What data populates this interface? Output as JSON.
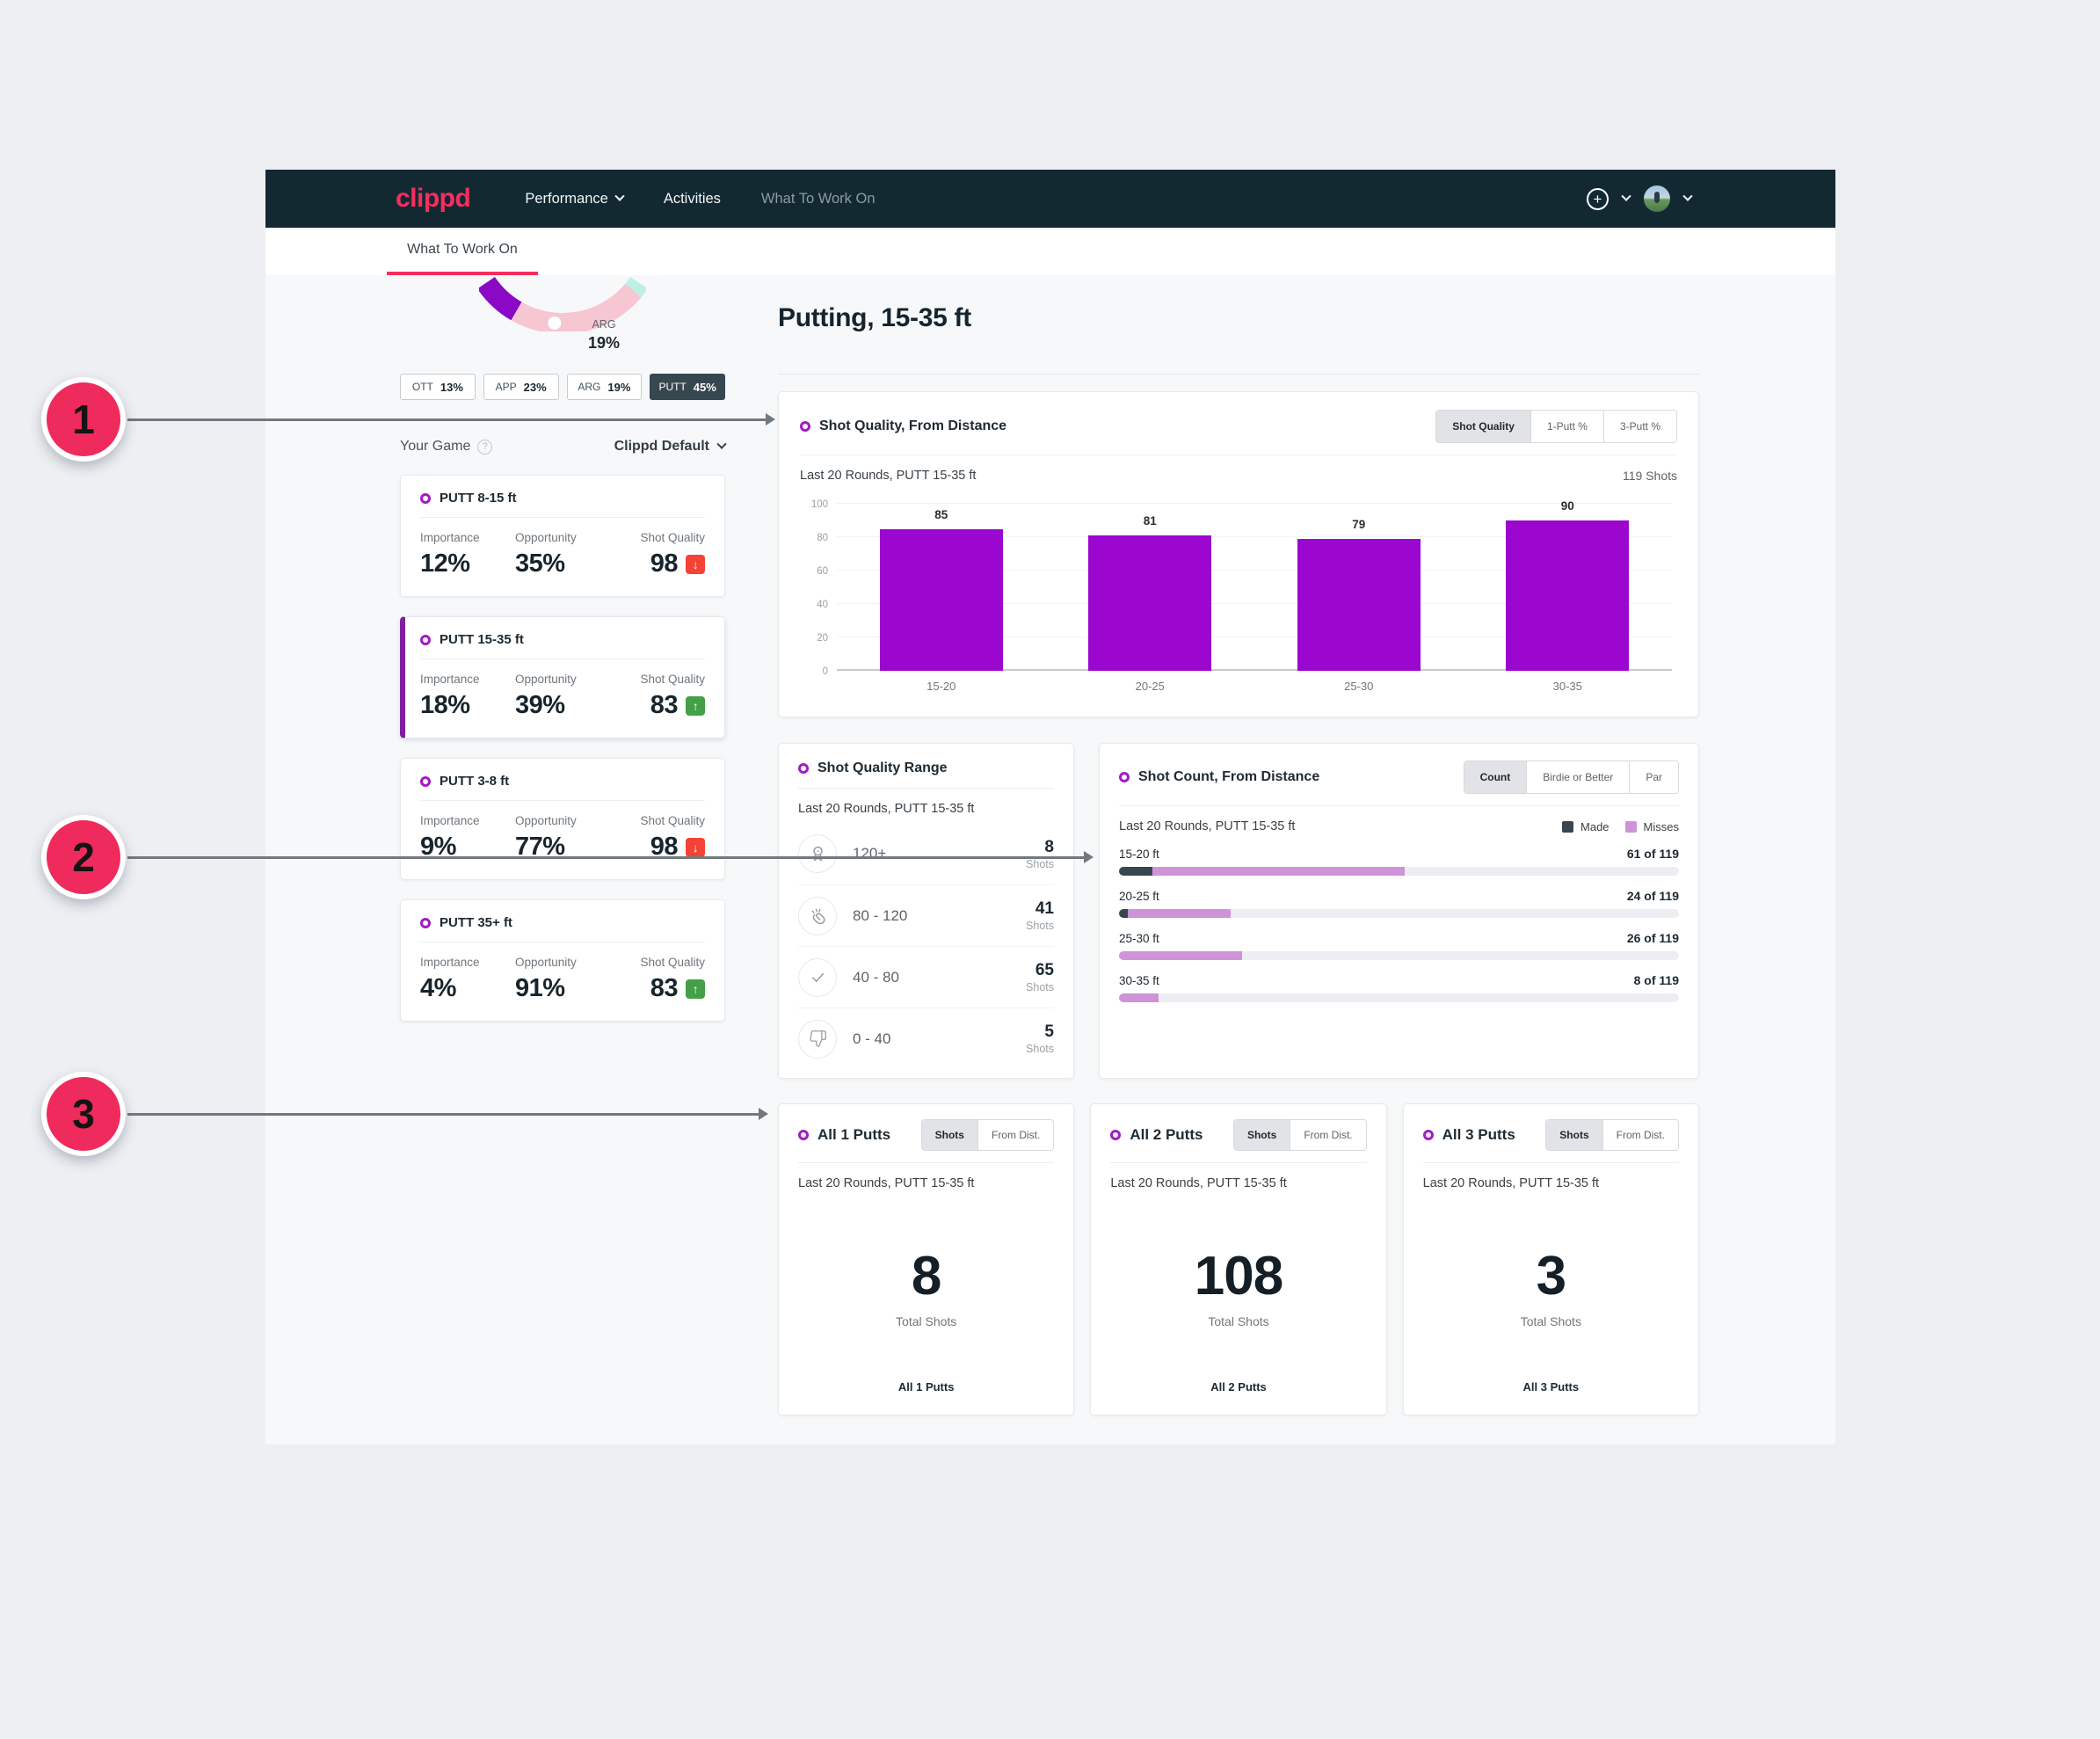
{
  "navbar": {
    "logo": "clippd",
    "items": [
      {
        "label": "Performance",
        "has_caret": true,
        "active": false
      },
      {
        "label": "Activities",
        "has_caret": false,
        "active": false
      },
      {
        "label": "What To Work On",
        "has_caret": false,
        "active": true
      }
    ]
  },
  "tabbar": {
    "tabs": [
      {
        "label": "What To Work On",
        "active": true
      }
    ]
  },
  "sidebar": {
    "gauge": {
      "label": "ARG",
      "value": "19%"
    },
    "chips": [
      {
        "label": "OTT",
        "value": "13%",
        "selected": false
      },
      {
        "label": "APP",
        "value": "23%",
        "selected": false
      },
      {
        "label": "ARG",
        "value": "19%",
        "selected": false
      },
      {
        "label": "PUTT",
        "value": "45%",
        "selected": true
      }
    ],
    "your_game": {
      "label": "Your Game",
      "preset": "Clippd Default"
    },
    "metric_labels": {
      "importance": "Importance",
      "opportunity": "Opportunity",
      "shot_quality": "Shot Quality"
    },
    "cards": [
      {
        "title": "PUTT 8-15 ft",
        "importance": "12%",
        "opportunity": "35%",
        "shot_quality": "98",
        "trend": "down",
        "selected": false
      },
      {
        "title": "PUTT 15-35 ft",
        "importance": "18%",
        "opportunity": "39%",
        "shot_quality": "83",
        "trend": "up",
        "selected": true
      },
      {
        "title": "PUTT 3-8 ft",
        "importance": "9%",
        "opportunity": "77%",
        "shot_quality": "98",
        "trend": "down",
        "selected": false
      },
      {
        "title": "PUTT 35+ ft",
        "importance": "4%",
        "opportunity": "91%",
        "shot_quality": "83",
        "trend": "up",
        "selected": false
      }
    ]
  },
  "main": {
    "title": "Putting, 15-35 ft",
    "shot_quality_card": {
      "title": "Shot Quality, From Distance",
      "tabs": [
        {
          "label": "Shot Quality",
          "selected": true
        },
        {
          "label": "1-Putt %",
          "selected": false
        },
        {
          "label": "3-Putt %",
          "selected": false
        }
      ],
      "subtitle": "Last 20 Rounds, PUTT 15-35 ft",
      "shots_total": "119 Shots",
      "chart_data": {
        "type": "bar",
        "categories": [
          "15-20",
          "20-25",
          "25-30",
          "30-35"
        ],
        "values": [
          85,
          81,
          79,
          90
        ],
        "ylim": [
          0,
          100
        ],
        "yticks": [
          0,
          20,
          40,
          60,
          80,
          100
        ],
        "bar_color": "#9B07CE"
      }
    },
    "range_card": {
      "title": "Shot Quality Range",
      "subtitle": "Last 20 Rounds, PUTT 15-35 ft",
      "unit": "Shots",
      "rows": [
        {
          "icon": "medal-icon",
          "range": "120+",
          "value": "8"
        },
        {
          "icon": "clap-icon",
          "range": "80 - 120",
          "value": "41"
        },
        {
          "icon": "check-icon",
          "range": "40 - 80",
          "value": "65"
        },
        {
          "icon": "thumbs-down-icon",
          "range": "0 - 40",
          "value": "5"
        }
      ]
    },
    "count_card": {
      "title": "Shot Count, From Distance",
      "tabs": [
        {
          "label": "Count",
          "selected": true
        },
        {
          "label": "Birdie or Better",
          "selected": false
        },
        {
          "label": "Par",
          "selected": false
        }
      ],
      "subtitle": "Last 20 Rounds, PUTT 15-35 ft",
      "legend": [
        {
          "label": "Made",
          "color": "#37474F"
        },
        {
          "label": "Misses",
          "color": "#CE93D8"
        }
      ],
      "rows": [
        {
          "label": "15-20 ft",
          "value": "61 of 119",
          "made_pct": 6,
          "miss_pct": 45
        },
        {
          "label": "20-25 ft",
          "value": "24 of 119",
          "made_pct": 1.5,
          "miss_pct": 18.5
        },
        {
          "label": "25-30 ft",
          "value": "26 of 119",
          "made_pct": 0,
          "miss_pct": 22
        },
        {
          "label": "30-35 ft",
          "value": "8 of 119",
          "made_pct": 0,
          "miss_pct": 7
        }
      ]
    },
    "putt_cards": [
      {
        "title": "All 1 Putts",
        "tabs": [
          {
            "label": "Shots",
            "selected": true
          },
          {
            "label": "From Dist.",
            "selected": false
          }
        ],
        "subtitle": "Last 20 Rounds, PUTT 15-35 ft",
        "total": "8",
        "total_label": "Total Shots",
        "footer": "All 1 Putts"
      },
      {
        "title": "All 2 Putts",
        "tabs": [
          {
            "label": "Shots",
            "selected": true
          },
          {
            "label": "From Dist.",
            "selected": false
          }
        ],
        "subtitle": "Last 20 Rounds, PUTT 15-35 ft",
        "total": "108",
        "total_label": "Total Shots",
        "footer": "All 2 Putts"
      },
      {
        "title": "All 3 Putts",
        "tabs": [
          {
            "label": "Shots",
            "selected": true
          },
          {
            "label": "From Dist.",
            "selected": false
          }
        ],
        "subtitle": "Last 20 Rounds, PUTT 15-35 ft",
        "total": "3",
        "total_label": "Total Shots",
        "footer": "All 3 Putts"
      }
    ]
  },
  "annotations": [
    {
      "number": "1"
    },
    {
      "number": "2"
    },
    {
      "number": "3"
    }
  ],
  "colors": {
    "brand_pink": "#F62E5F",
    "annotation_pink": "#EE2B5C",
    "bar_purple": "#9B07CE",
    "made_dark": "#37474F",
    "misses_purple": "#CE93D8",
    "badge_up_green": "#43A047",
    "badge_down_red": "#F44336",
    "navbar_bg": "#132932",
    "gauge_purple": "#8A08C6",
    "gauge_pink": "#F7C6D3",
    "gauge_mint": "#BEEFE4"
  }
}
